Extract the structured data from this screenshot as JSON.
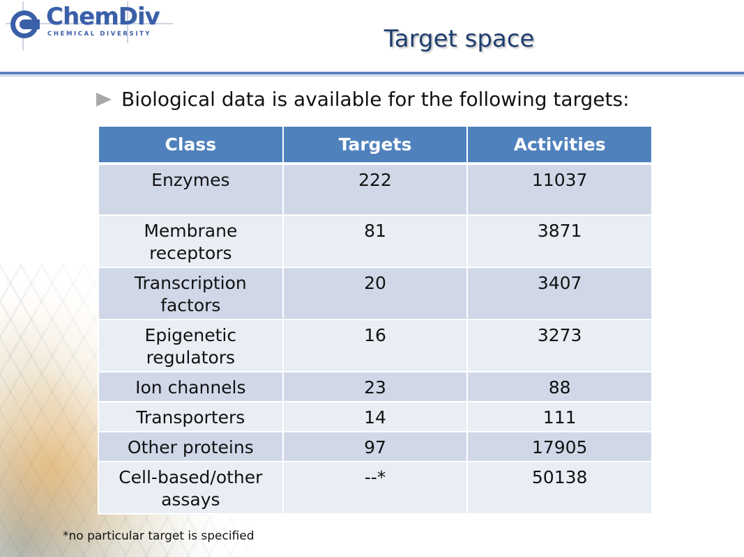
{
  "logo": {
    "name": "ChemDiv",
    "tagline": "CHEMICAL DIVERSITY"
  },
  "title": "Target space",
  "bullet": "Biological data is available for the following targets:",
  "table": {
    "headers": [
      "Class",
      "Targets",
      "Activities"
    ],
    "rows": [
      {
        "class": "Enzymes",
        "targets": "222",
        "activities": "11037"
      },
      {
        "class": "Membrane receptors",
        "targets": "81",
        "activities": "3871"
      },
      {
        "class": "Transcription factors",
        "targets": "20",
        "activities": "3407"
      },
      {
        "class": "Epigenetic regulators",
        "targets": "16",
        "activities": "3273"
      },
      {
        "class": "Ion channels",
        "targets": "23",
        "activities": "88"
      },
      {
        "class": "Transporters",
        "targets": "14",
        "activities": "111"
      },
      {
        "class": "Other proteins",
        "targets": "97",
        "activities": "17905"
      },
      {
        "class": "Cell-based/other assays",
        "targets": "--*",
        "activities": "50138"
      }
    ]
  },
  "footnote": "*no particular target is specified",
  "colors": {
    "header_fill": "#4f81bd",
    "row_dark": "#d0d8e8",
    "row_light": "#e9edf4",
    "title": "#1f3d6e",
    "rule": "#5b7fbd"
  }
}
